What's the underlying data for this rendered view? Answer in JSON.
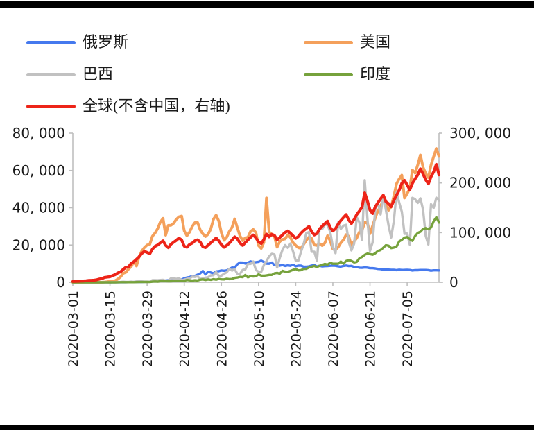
{
  "page": {
    "background": "#ffffff",
    "top_rule_color": "#000000",
    "bottom_rule_color": "#000000"
  },
  "legend": {
    "items": [
      {
        "label": "俄罗斯",
        "color": "#4579EE"
      },
      {
        "label": "美国",
        "color": "#F4A05B"
      },
      {
        "label": "巴西",
        "color": "#C1C1C1"
      },
      {
        "label": "印度",
        "color": "#76A23C"
      },
      {
        "label": "全球(不含中国，右轴)",
        "color": "#ED2418"
      }
    ]
  },
  "chart_data": {
    "type": "line",
    "title": "",
    "xlabel": "",
    "ylabel_left": "",
    "ylabel_right": "",
    "grid": false,
    "legend_position": "top",
    "axis_color": "#BFBFBF",
    "label_color": "#1a1a1a",
    "x": {
      "start_date": "2020-03-01",
      "end_date": "2020-07-17",
      "frequency": "daily",
      "tick_every_days": 14,
      "tick_labels": [
        "2020-03-01",
        "2020-03-15",
        "2020-03-29",
        "2020-04-12",
        "2020-04-26",
        "2020-05-10",
        "2020-05-24",
        "2020-06-07",
        "2020-06-21",
        "2020-07-05"
      ]
    },
    "axes": {
      "left": {
        "min": 0,
        "max": 80000,
        "tick_labels_top_to_bottom": [
          "80, 000",
          "60, 000",
          "40, 000",
          "20, 000",
          "0"
        ]
      },
      "right": {
        "min": 0,
        "max": 300000,
        "tick_labels_top_to_bottom": [
          "300, 000",
          "200, 000",
          "100, 000",
          "0"
        ]
      }
    },
    "series": [
      {
        "id": "russia",
        "name": "俄罗斯",
        "axis": "left",
        "color": "#4579EE",
        "width": 3.4,
        "values": [
          0,
          0,
          3,
          3,
          0,
          4,
          5,
          3,
          6,
          10,
          8,
          14,
          20,
          33,
          14,
          30,
          32,
          33,
          54,
          81,
          53,
          61,
          71,
          132,
          163,
          182,
          196,
          228,
          270,
          302,
          440,
          501,
          601,
          771,
          658,
          954,
          1154,
          1175,
          1459,
          1667,
          1786,
          1448,
          2186,
          2558,
          2774,
          3388,
          3448,
          4070,
          4785,
          6060,
          4268,
          5642,
          5236,
          4774,
          5849,
          5966,
          6361,
          6198,
          6411,
          7099,
          7933,
          7867,
          9623,
          10633,
          10581,
          10102,
          10559,
          11231,
          10699,
          10817,
          11012,
          11656,
          10899,
          10028,
          9974,
          10598,
          9200,
          9709,
          8926,
          9263,
          8764,
          9094,
          8849,
          9434,
          8599,
          8946,
          8915,
          8338,
          8371,
          8572,
          8952,
          9268,
          8485,
          8863,
          8536,
          8676,
          8726,
          8855,
          8984,
          8863,
          8595,
          8404,
          8779,
          8987,
          8706,
          8835,
          8246,
          8248,
          7843,
          7790,
          7972,
          7889,
          7600,
          7580,
          7425,
          7176,
          7113,
          6800,
          6852,
          6791,
          6719,
          6693,
          6556,
          6760,
          6632,
          6642,
          6736,
          6611,
          6368,
          6562,
          6509,
          6635,
          6611,
          6615,
          6537,
          6248,
          6422,
          6428,
          6406
        ]
      },
      {
        "id": "us",
        "name": "美国",
        "axis": "left",
        "color": "#F4A05B",
        "width": 4,
        "values": [
          6,
          5,
          14,
          6,
          3,
          22,
          19,
          19,
          24,
          31,
          68,
          51,
          157,
          288,
          538,
          347,
          887,
          1766,
          2988,
          4835,
          5374,
          7123,
          8459,
          11236,
          8789,
          13963,
          16797,
          18695,
          19979,
          20353,
          24742,
          26473,
          28819,
          32425,
          34272,
          25316,
          30561,
          30613,
          31709,
          33752,
          35098,
          35527,
          27620,
          25023,
          26922,
          30003,
          31989,
          32165,
          28123,
          25995,
          24601,
          25858,
          28675,
          33825,
          36007,
          32875,
          26509,
          22541,
          24132,
          27327,
          29508,
          33955,
          29288,
          24972,
          22335,
          23841,
          24128,
          27327,
          28369,
          26660,
          19731,
          18196,
          21467,
          45251,
          27143,
          25508,
          24487,
          18873,
          21841,
          22977,
          23285,
          25434,
          24147,
          21236,
          19790,
          18611,
          18263,
          20392,
          22577,
          24266,
          23553,
          20007,
          19807,
          20720,
          19699,
          21140,
          25006,
          22302,
          17919,
          17598,
          18822,
          21148,
          22860,
          25540,
          24720,
          19543,
          21957,
          23777,
          26922,
          27762,
          32218,
          31994,
          26079,
          30300,
          34720,
          38386,
          40588,
          44602,
          42486,
          38673,
          40588,
          46329,
          52898,
          55442,
          57497,
          45255,
          47576,
          50304,
          60209,
          58601,
          63004,
          68241,
          61763,
          58349,
          56140,
          62879,
          67404,
          71787,
          67574
        ]
      },
      {
        "id": "brazil",
        "name": "巴西",
        "axis": "left",
        "color": "#C1C1C1",
        "width": 3.4,
        "values": [
          0,
          1,
          0,
          1,
          1,
          6,
          4,
          6,
          12,
          20,
          26,
          24,
          49,
          46,
          34,
          99,
          57,
          137,
          193,
          283,
          224,
          233,
          323,
          232,
          482,
          502,
          486,
          352,
          330,
          296,
          1138,
          1119,
          1074,
          1222,
          1304,
          852,
          926,
          2210,
          2151,
          1769,
          2242,
          1089,
          1442,
          1832,
          2105,
          3058,
          2917,
          3257,
          1781,
          2055,
          2498,
          2678,
          3735,
          3810,
          5514,
          3503,
          3567,
          4613,
          5385,
          7218,
          6276,
          7075,
          4588,
          4488,
          6633,
          6935,
          9888,
          9891,
          11121,
          6638,
          5632,
          5632,
          9258,
          11385,
          13944,
          15305,
          14919,
          7938,
          13140,
          17408,
          19951,
          18508,
          20803,
          16508,
          11687,
          11598,
          16324,
          20599,
          26417,
          26928,
          16409,
          16409,
          11598,
          28936,
          28633,
          30925,
          30830,
          27075,
          18912,
          15654,
          32091,
          28633,
          30412,
          30830,
          21704,
          17110,
          20647,
          34918,
          32188,
          22765,
          54771,
          34666,
          16851,
          21432,
          39436,
          42725,
          36393,
          46860,
          38693,
          30476,
          24052,
          33100,
          48105,
          42820,
          37923,
          26051,
          26174,
          20229,
          45305,
          44571,
          42619,
          45048,
          39023,
          24831,
          20286,
          41857,
          39924,
          45403,
          43829
        ]
      },
      {
        "id": "india",
        "name": "印度",
        "axis": "left",
        "color": "#76A23C",
        "width": 3.4,
        "values": [
          0,
          2,
          1,
          22,
          0,
          1,
          3,
          4,
          5,
          10,
          9,
          8,
          14,
          11,
          26,
          13,
          15,
          24,
          63,
          70,
          63,
          87,
          75,
          87,
          121,
          131,
          150,
          179,
          227,
          146,
          346,
          437,
          336,
          601,
          579,
          609,
          573,
          540,
          678,
          847,
          871,
          854,
          758,
          1243,
          1031,
          886,
          1061,
          922,
          1371,
          1580,
          1239,
          1537,
          1292,
          1667,
          1408,
          1835,
          1607,
          1561,
          1902,
          1705,
          1801,
          2396,
          2564,
          2952,
          2806,
          3900,
          2680,
          3344,
          3113,
          3277,
          4296,
          3604,
          3525,
          3722,
          3967,
          3970,
          4794,
          5050,
          4628,
          6154,
          5720,
          5611,
          6088,
          6654,
          7113,
          6414,
          6535,
          7246,
          7254,
          7964,
          8380,
          8789,
          8171,
          8909,
          9304,
          9851,
          9471,
          10438,
          9971,
          9987,
          9979,
          11128,
          9996,
          11458,
          11929,
          11502,
          10667,
          10974,
          12881,
          13586,
          14721,
          15413,
          15151,
          14821,
          15601,
          16868,
          17296,
          18552,
          19906,
          19620,
          18339,
          18653,
          19148,
          21948,
          22771,
          24018,
          24248,
          23135,
          22252,
          24879,
          26506,
          27114,
          28637,
          29108,
          28498,
          29429,
          32695,
          34884,
          32087
        ]
      },
      {
        "id": "global-ex-china",
        "name": "全球(不含中国，右轴)",
        "axis": "right",
        "color": "#ED2418",
        "width": 4.2,
        "values": [
          1739,
          1835,
          2127,
          2315,
          2626,
          3009,
          3684,
          3911,
          4234,
          5001,
          6546,
          7522,
          9886,
          10558,
          11202,
          13587,
          15518,
          18937,
          21273,
          26101,
          30282,
          30962,
          38198,
          41355,
          46352,
          51425,
          58238,
          62186,
          60152,
          57282,
          66778,
          72379,
          75173,
          79498,
          83378,
          74245,
          69640,
          76824,
          80698,
          84406,
          89077,
          85055,
          72706,
          70569,
          76227,
          78904,
          83495,
          85555,
          81022,
          71760,
          69886,
          74867,
          79605,
          84066,
          89124,
          83444,
          75634,
          70634,
          74169,
          78835,
          85135,
          91568,
          87712,
          79312,
          74212,
          80112,
          85204,
          90466,
          95312,
          89433,
          81577,
          78034,
          86043,
          97000,
          91521,
          96752,
          94255,
          85345,
          90122,
          95476,
          100345,
          103422,
          98878,
          93444,
          88435,
          92133,
          99112,
          104322,
          108233,
          112422,
          102334,
          95233,
          98122,
          107233,
          113322,
          118233,
          123122,
          110334,
          103322,
          108233,
          117122,
          124233,
          130322,
          136122,
          125233,
          118322,
          126233,
          136122,
          143233,
          151322,
          179877,
          164233,
          145322,
          138233,
          152122,
          160233,
          168122,
          175233,
          162122,
          158233,
          152122,
          165233,
          175122,
          185233,
          199322,
          205122,
          196233,
          186122,
          199233,
          208122,
          216233,
          228322,
          218122,
          206233,
          198122,
          212233,
          222122,
          237233,
          216122
        ]
      }
    ]
  }
}
